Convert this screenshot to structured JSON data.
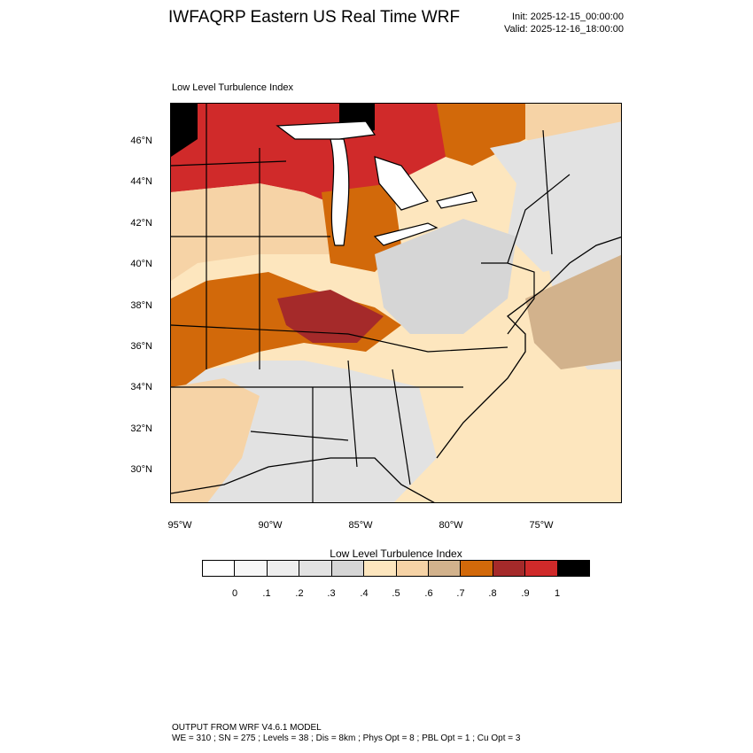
{
  "header": {
    "title": "IWFAQRP Eastern US Real Time WRF",
    "init": "Init: 2025-12-15_00:00:00",
    "valid": "Valid: 2025-12-16_18:00:00"
  },
  "map": {
    "label": "Low Level Turbulence Index",
    "lat_labels": [
      "46°N",
      "44°N",
      "42°N",
      "40°N",
      "38°N",
      "36°N",
      "34°N",
      "32°N",
      "30°N"
    ],
    "lon_labels": [
      "95°W",
      "90°W",
      "85°W",
      "80°W",
      "75°W"
    ]
  },
  "colorbar": {
    "title": "Low Level Turbulence Index",
    "colors": [
      "#ffffff",
      "#f7f7f7",
      "#eeeeee",
      "#e2e2e2",
      "#d6d6d6",
      "#fde6be",
      "#f6d3a6",
      "#d2b28c",
      "#d2690a",
      "#a52a2a",
      "#d02a2a",
      "#000000"
    ],
    "tick_labels": [
      "0",
      ".1",
      ".2",
      ".3",
      ".4",
      ".5",
      ".6",
      ".7",
      ".8",
      ".9",
      "1"
    ]
  },
  "footer": {
    "line1": "OUTPUT FROM WRF V4.6.1 MODEL",
    "line2": "WE = 310 ; SN = 275 ; Levels = 38 ; Dis = 8km ; Phys Opt = 8 ; PBL Opt = 1 ; Cu Opt = 3"
  }
}
